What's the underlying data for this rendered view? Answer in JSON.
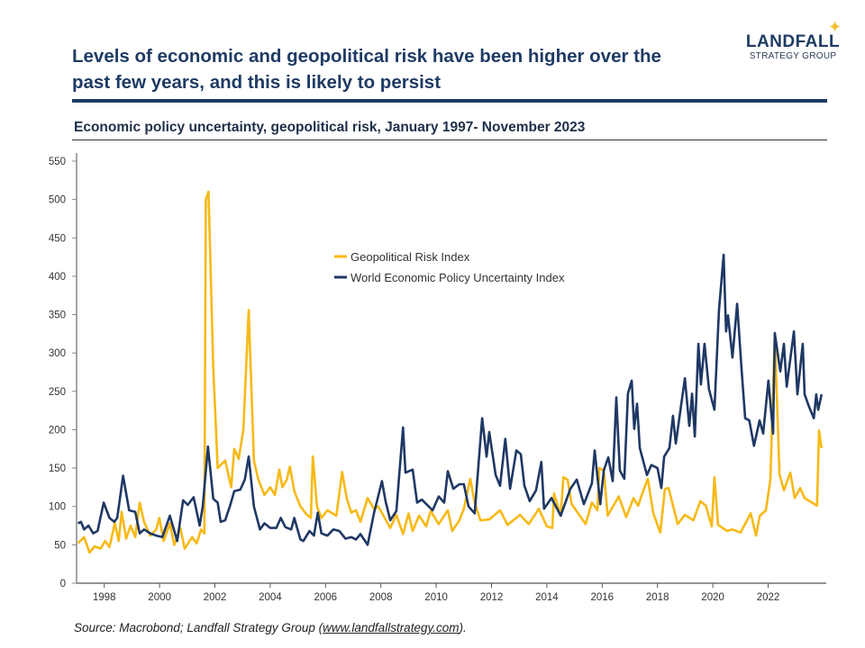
{
  "header": {
    "title": "Levels of economic and geopolitical risk have been higher over the past few years, and this is likely to persist",
    "logo_main": "LANDFALL",
    "logo_sub": "STRATEGY GROUP"
  },
  "footer": {
    "source_prefix": "Source: Macrobond; Landfall Strategy Group (",
    "source_link": "www.landfallstrategy.com",
    "source_suffix": ")."
  },
  "colors": {
    "navy": "#1f3864",
    "gold": "#f7b916",
    "title": "#1f3b64"
  },
  "chart_data": {
    "type": "line",
    "title": "Economic policy uncertainty, geopolitical risk, January 1997- November 2023",
    "xlabel": "",
    "ylabel": "",
    "xlim": [
      1997,
      2024
    ],
    "ylim": [
      0,
      560
    ],
    "yticks": [
      0,
      50,
      100,
      150,
      200,
      250,
      300,
      350,
      400,
      450,
      500,
      550
    ],
    "xticks": [
      1998,
      2000,
      2002,
      2004,
      2006,
      2008,
      2010,
      2012,
      2014,
      2016,
      2018,
      2020,
      2022
    ],
    "grid": false,
    "legend": "center",
    "series": [
      {
        "name": "Geopolitical Risk Index",
        "color": "#f7b916",
        "points": [
          [
            1997.05,
            52
          ],
          [
            1997.27,
            60
          ],
          [
            1997.47,
            40
          ],
          [
            1997.65,
            48
          ],
          [
            1997.87,
            45
          ],
          [
            1998.03,
            55
          ],
          [
            1998.19,
            47
          ],
          [
            1998.38,
            78
          ],
          [
            1998.52,
            55
          ],
          [
            1998.63,
            93
          ],
          [
            1998.79,
            58
          ],
          [
            1998.95,
            75
          ],
          [
            1999.12,
            60
          ],
          [
            1999.28,
            105
          ],
          [
            1999.44,
            80
          ],
          [
            1999.66,
            62
          ],
          [
            1999.88,
            70
          ],
          [
            1999.99,
            85
          ],
          [
            2000.15,
            55
          ],
          [
            2000.37,
            78
          ],
          [
            2000.53,
            50
          ],
          [
            2000.75,
            72
          ],
          [
            2000.91,
            45
          ],
          [
            2001.18,
            60
          ],
          [
            2001.34,
            52
          ],
          [
            2001.5,
            70
          ],
          [
            2001.62,
            65
          ],
          [
            2001.67,
            500
          ],
          [
            2001.77,
            510
          ],
          [
            2001.94,
            280
          ],
          [
            2002.1,
            150
          ],
          [
            2002.37,
            160
          ],
          [
            2002.59,
            125
          ],
          [
            2002.7,
            175
          ],
          [
            2002.86,
            162
          ],
          [
            2003.03,
            200
          ],
          [
            2003.22,
            356
          ],
          [
            2003.41,
            160
          ],
          [
            2003.57,
            135
          ],
          [
            2003.79,
            115
          ],
          [
            2004.0,
            125
          ],
          [
            2004.17,
            115
          ],
          [
            2004.33,
            148
          ],
          [
            2004.44,
            125
          ],
          [
            2004.6,
            135
          ],
          [
            2004.71,
            152
          ],
          [
            2004.87,
            120
          ],
          [
            2005.09,
            100
          ],
          [
            2005.31,
            90
          ],
          [
            2005.47,
            85
          ],
          [
            2005.54,
            165
          ],
          [
            2005.69,
            100
          ],
          [
            2005.85,
            85
          ],
          [
            2006.07,
            95
          ],
          [
            2006.39,
            88
          ],
          [
            2006.6,
            145
          ],
          [
            2006.77,
            110
          ],
          [
            2006.93,
            92
          ],
          [
            2007.1,
            95
          ],
          [
            2007.26,
            80
          ],
          [
            2007.52,
            111
          ],
          [
            2007.75,
            97
          ],
          [
            2007.91,
            100
          ],
          [
            2008.34,
            72
          ],
          [
            2008.56,
            89
          ],
          [
            2008.8,
            64
          ],
          [
            2009.0,
            91
          ],
          [
            2009.15,
            68
          ],
          [
            2009.38,
            88
          ],
          [
            2009.64,
            74
          ],
          [
            2009.8,
            94
          ],
          [
            2010.09,
            77
          ],
          [
            2010.42,
            95
          ],
          [
            2010.58,
            68
          ],
          [
            2010.84,
            82
          ],
          [
            2011.0,
            97
          ],
          [
            2011.23,
            136
          ],
          [
            2011.39,
            105
          ],
          [
            2011.6,
            82
          ],
          [
            2011.92,
            83
          ],
          [
            2012.31,
            95
          ],
          [
            2012.58,
            76
          ],
          [
            2013.03,
            89
          ],
          [
            2013.35,
            77
          ],
          [
            2013.71,
            97
          ],
          [
            2014.0,
            74
          ],
          [
            2014.2,
            72
          ],
          [
            2014.26,
            117
          ],
          [
            2014.5,
            88
          ],
          [
            2014.6,
            138
          ],
          [
            2014.75,
            135
          ],
          [
            2014.9,
            103
          ],
          [
            2015.4,
            77
          ],
          [
            2015.63,
            105
          ],
          [
            2015.83,
            95
          ],
          [
            2015.9,
            150
          ],
          [
            2016.06,
            147
          ],
          [
            2016.2,
            88
          ],
          [
            2016.6,
            113
          ],
          [
            2016.87,
            86
          ],
          [
            2017.13,
            111
          ],
          [
            2017.3,
            101
          ],
          [
            2017.52,
            124
          ],
          [
            2017.65,
            136
          ],
          [
            2017.85,
            91
          ],
          [
            2018.1,
            66
          ],
          [
            2018.27,
            123
          ],
          [
            2018.4,
            124
          ],
          [
            2018.73,
            77
          ],
          [
            2018.99,
            89
          ],
          [
            2019.3,
            82
          ],
          [
            2019.55,
            107
          ],
          [
            2019.75,
            101
          ],
          [
            2019.96,
            74
          ],
          [
            2020.06,
            138
          ],
          [
            2020.19,
            76
          ],
          [
            2020.52,
            68
          ],
          [
            2020.71,
            70
          ],
          [
            2021.0,
            66
          ],
          [
            2021.37,
            91
          ],
          [
            2021.56,
            62
          ],
          [
            2021.7,
            88
          ],
          [
            2021.92,
            95
          ],
          [
            2022.08,
            135
          ],
          [
            2022.24,
            323
          ],
          [
            2022.41,
            142
          ],
          [
            2022.57,
            121
          ],
          [
            2022.8,
            144
          ],
          [
            2022.96,
            111
          ],
          [
            2023.16,
            124
          ],
          [
            2023.32,
            111
          ],
          [
            2023.77,
            101
          ],
          [
            2023.84,
            199
          ],
          [
            2023.93,
            176
          ]
        ]
      },
      {
        "name": "World Economic Policy Uncertainty Index",
        "color": "#1f3864",
        "points": [
          [
            1997.05,
            78
          ],
          [
            1997.16,
            80
          ],
          [
            1997.27,
            70
          ],
          [
            1997.43,
            75
          ],
          [
            1997.6,
            65
          ],
          [
            1997.76,
            68
          ],
          [
            1997.98,
            105
          ],
          [
            1998.19,
            85
          ],
          [
            1998.36,
            80
          ],
          [
            1998.47,
            85
          ],
          [
            1998.68,
            140
          ],
          [
            1998.9,
            95
          ],
          [
            1999.12,
            93
          ],
          [
            1999.28,
            65
          ],
          [
            1999.44,
            70
          ],
          [
            1999.66,
            65
          ],
          [
            1999.88,
            62
          ],
          [
            2000.1,
            60
          ],
          [
            2000.37,
            88
          ],
          [
            2000.64,
            55
          ],
          [
            2000.85,
            108
          ],
          [
            2001.02,
            102
          ],
          [
            2001.23,
            112
          ],
          [
            2001.45,
            75
          ],
          [
            2001.56,
            100
          ],
          [
            2001.75,
            178
          ],
          [
            2001.94,
            110
          ],
          [
            2002.1,
            105
          ],
          [
            2002.21,
            80
          ],
          [
            2002.37,
            82
          ],
          [
            2002.54,
            100
          ],
          [
            2002.7,
            120
          ],
          [
            2002.92,
            122
          ],
          [
            2003.08,
            135
          ],
          [
            2003.22,
            165
          ],
          [
            2003.41,
            100
          ],
          [
            2003.63,
            70
          ],
          [
            2003.79,
            78
          ],
          [
            2004.0,
            72
          ],
          [
            2004.22,
            72
          ],
          [
            2004.38,
            85
          ],
          [
            2004.55,
            73
          ],
          [
            2004.76,
            70
          ],
          [
            2004.87,
            85
          ],
          [
            2005.09,
            57
          ],
          [
            2005.2,
            55
          ],
          [
            2005.42,
            68
          ],
          [
            2005.58,
            62
          ],
          [
            2005.72,
            92
          ],
          [
            2005.85,
            65
          ],
          [
            2006.07,
            62
          ],
          [
            2006.28,
            70
          ],
          [
            2006.5,
            68
          ],
          [
            2006.72,
            58
          ],
          [
            2006.93,
            60
          ],
          [
            2007.1,
            57
          ],
          [
            2007.26,
            64
          ],
          [
            2007.52,
            50
          ],
          [
            2007.75,
            91
          ],
          [
            2008.04,
            133
          ],
          [
            2008.17,
            107
          ],
          [
            2008.34,
            82
          ],
          [
            2008.56,
            94
          ],
          [
            2008.8,
            203
          ],
          [
            2008.89,
            144
          ],
          [
            2009.15,
            148
          ],
          [
            2009.31,
            105
          ],
          [
            2009.48,
            109
          ],
          [
            2009.87,
            95
          ],
          [
            2010.09,
            113
          ],
          [
            2010.29,
            105
          ],
          [
            2010.42,
            146
          ],
          [
            2010.62,
            123
          ],
          [
            2010.84,
            129
          ],
          [
            2011.0,
            129
          ],
          [
            2011.17,
            100
          ],
          [
            2011.39,
            91
          ],
          [
            2011.66,
            215
          ],
          [
            2011.82,
            165
          ],
          [
            2011.92,
            197
          ],
          [
            2012.15,
            141
          ],
          [
            2012.31,
            127
          ],
          [
            2012.5,
            188
          ],
          [
            2012.67,
            123
          ],
          [
            2012.9,
            173
          ],
          [
            2013.06,
            168
          ],
          [
            2013.19,
            127
          ],
          [
            2013.38,
            107
          ],
          [
            2013.61,
            121
          ],
          [
            2013.8,
            158
          ],
          [
            2013.9,
            97
          ],
          [
            2014.17,
            111
          ],
          [
            2014.5,
            88
          ],
          [
            2014.85,
            123
          ],
          [
            2015.08,
            135
          ],
          [
            2015.34,
            103
          ],
          [
            2015.63,
            130
          ],
          [
            2015.73,
            173
          ],
          [
            2015.93,
            103
          ],
          [
            2016.06,
            147
          ],
          [
            2016.22,
            164
          ],
          [
            2016.38,
            133
          ],
          [
            2016.51,
            242
          ],
          [
            2016.64,
            147
          ],
          [
            2016.8,
            136
          ],
          [
            2016.93,
            247
          ],
          [
            2017.07,
            264
          ],
          [
            2017.16,
            201
          ],
          [
            2017.26,
            234
          ],
          [
            2017.36,
            176
          ],
          [
            2017.62,
            141
          ],
          [
            2017.78,
            154
          ],
          [
            2018.0,
            150
          ],
          [
            2018.14,
            124
          ],
          [
            2018.24,
            165
          ],
          [
            2018.43,
            176
          ],
          [
            2018.56,
            218
          ],
          [
            2018.66,
            182
          ],
          [
            2018.99,
            267
          ],
          [
            2019.15,
            205
          ],
          [
            2019.25,
            247
          ],
          [
            2019.35,
            191
          ],
          [
            2019.48,
            312
          ],
          [
            2019.57,
            259
          ],
          [
            2019.7,
            312
          ],
          [
            2019.86,
            253
          ],
          [
            2020.06,
            226
          ],
          [
            2020.22,
            355
          ],
          [
            2020.39,
            428
          ],
          [
            2020.48,
            328
          ],
          [
            2020.55,
            349
          ],
          [
            2020.71,
            294
          ],
          [
            2020.88,
            364
          ],
          [
            2021.04,
            279
          ],
          [
            2021.17,
            215
          ],
          [
            2021.32,
            212
          ],
          [
            2021.49,
            179
          ],
          [
            2021.69,
            212
          ],
          [
            2021.82,
            195
          ],
          [
            2022.01,
            264
          ],
          [
            2022.18,
            195
          ],
          [
            2022.24,
            326
          ],
          [
            2022.44,
            276
          ],
          [
            2022.57,
            312
          ],
          [
            2022.67,
            256
          ],
          [
            2022.93,
            328
          ],
          [
            2023.06,
            246
          ],
          [
            2023.25,
            312
          ],
          [
            2023.32,
            246
          ],
          [
            2023.48,
            230
          ],
          [
            2023.65,
            215
          ],
          [
            2023.74,
            246
          ],
          [
            2023.81,
            226
          ],
          [
            2023.93,
            246
          ]
        ]
      }
    ]
  }
}
